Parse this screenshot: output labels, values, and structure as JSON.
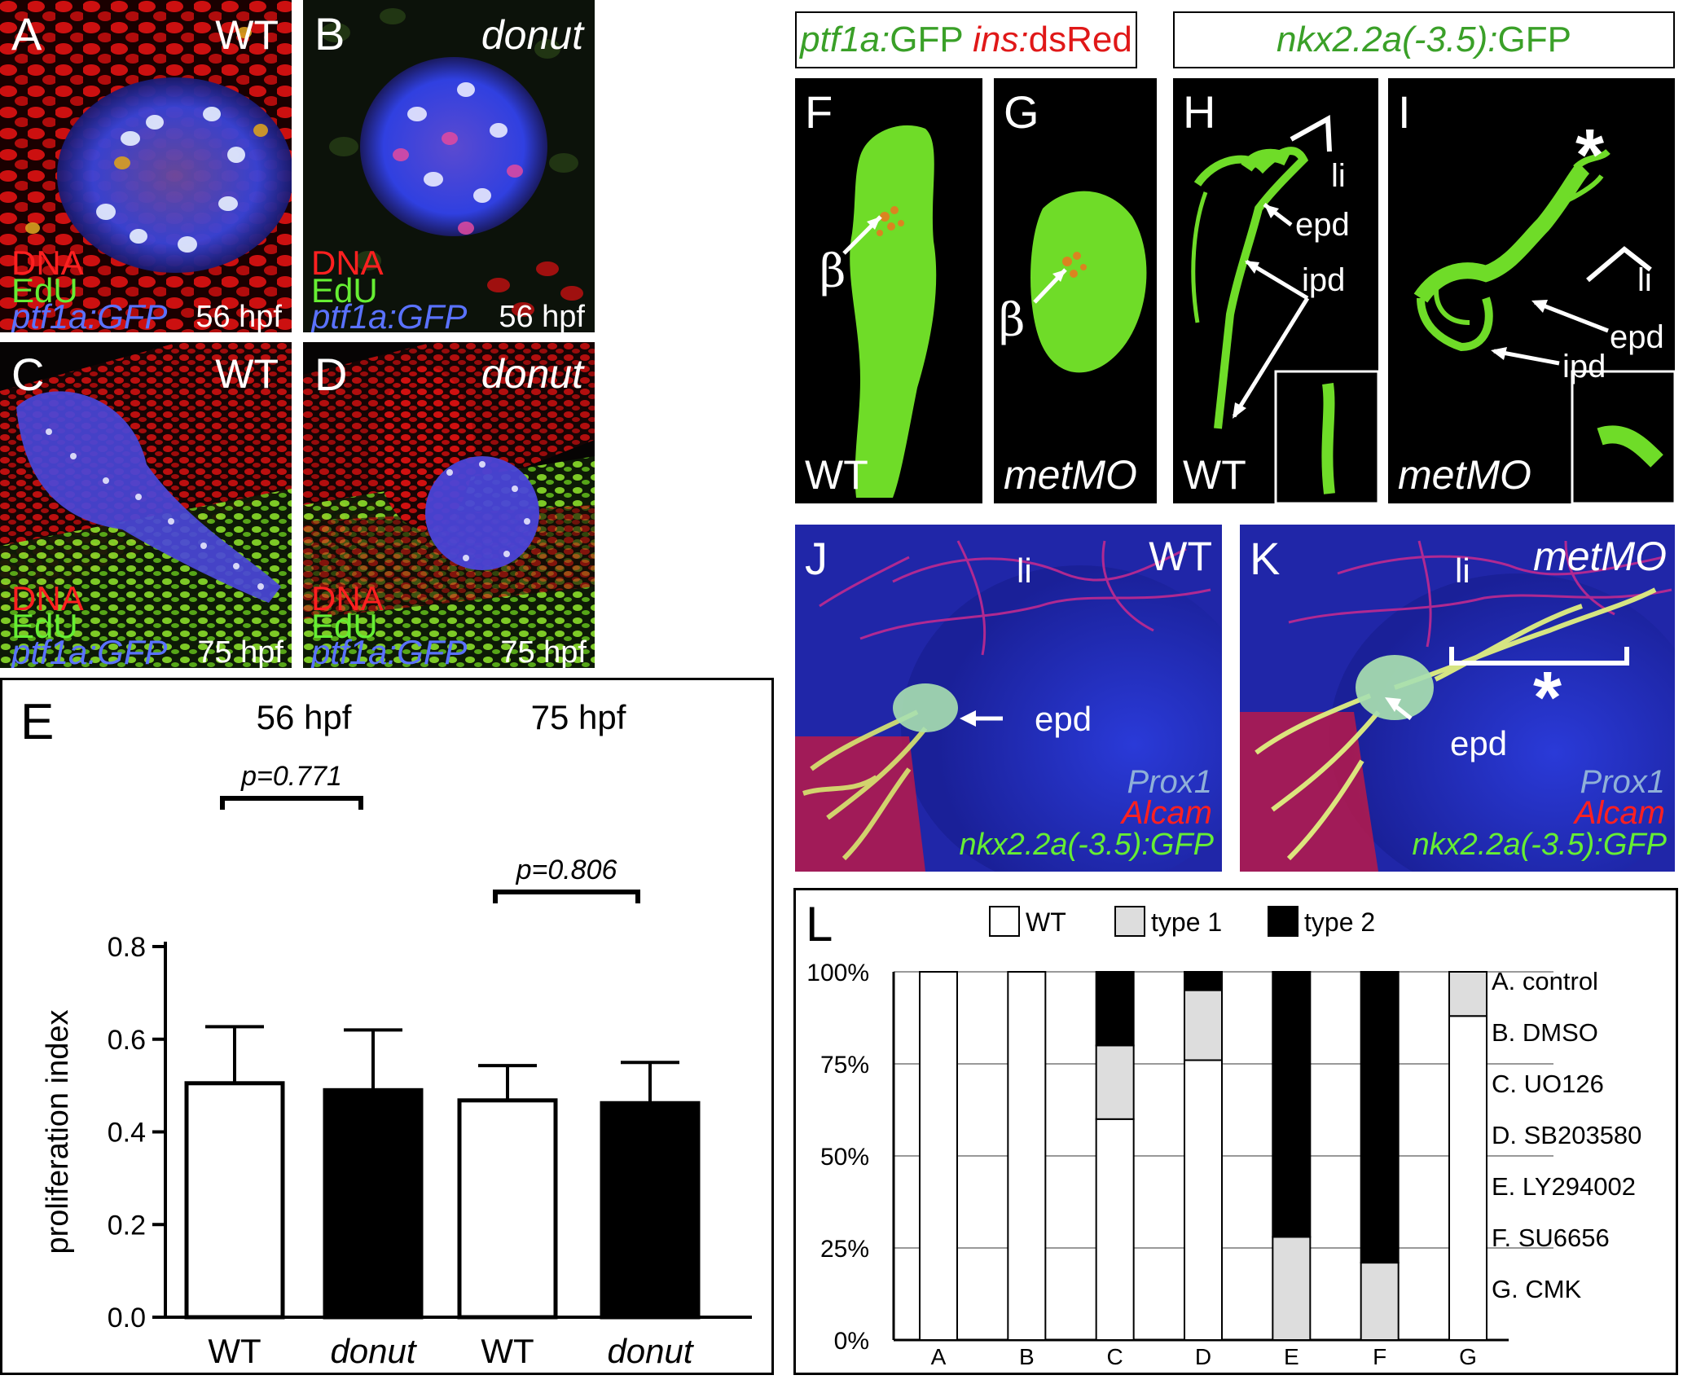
{
  "panels": {
    "A": {
      "letter": "A",
      "genotype": "WT",
      "stains": [
        "DNA",
        "EdU",
        "ptf1a:GFP"
      ],
      "time": "56 hpf"
    },
    "B": {
      "letter": "B",
      "genotype": "donut",
      "stains": [
        "DNA",
        "EdU",
        "ptf1a:GFP"
      ],
      "time": "56 hpf"
    },
    "C": {
      "letter": "C",
      "genotype": "WT",
      "stains": [
        "DNA",
        "EdU",
        "ptf1a:GFP"
      ],
      "time": "75 hpf"
    },
    "D": {
      "letter": "D",
      "genotype": "donut",
      "stains": [
        "DNA",
        "EdU",
        "ptf1a:GFP"
      ],
      "time": "75 hpf"
    },
    "F": {
      "letter": "F",
      "genotype": "WT",
      "beta": "β"
    },
    "G": {
      "letter": "G",
      "genotype": "metMO",
      "beta": "β"
    },
    "H": {
      "letter": "H",
      "genotype": "WT",
      "li": "li",
      "epd": "epd",
      "ipd": "ipd"
    },
    "I": {
      "letter": "I",
      "genotype": "metMO",
      "li": "li",
      "epd": "epd",
      "ipd": "ipd",
      "asterisk": "*"
    },
    "J": {
      "letter": "J",
      "genotype": "WT",
      "li": "li",
      "epd": "epd",
      "stains": [
        "Prox1",
        "Alcam",
        "nkx2.2a(-3.5):GFP"
      ]
    },
    "K": {
      "letter": "K",
      "genotype": "metMO",
      "li": "li",
      "epd": "epd",
      "asterisk": "*",
      "stains": [
        "Prox1",
        "Alcam",
        "nkx2.2a(-3.5):GFP"
      ]
    }
  },
  "headers": {
    "fg": {
      "green": "ptf1a:",
      "green2": "GFP ",
      "red": "ins:",
      "red2": "dsRed"
    },
    "hi": {
      "green": "nkx2.2a(-3.5):",
      "green2": "GFP"
    }
  },
  "chart_data": [
    {
      "panel": "E",
      "type": "bar",
      "ylabel": "proliferation index",
      "ylim": [
        0,
        0.8
      ],
      "yticks": [
        "0.0",
        "0.2",
        "0.4",
        "0.6",
        "0.8"
      ],
      "groups": [
        "56 hpf",
        "75 hpf"
      ],
      "categories": [
        "WT",
        "donut",
        "WT",
        "donut"
      ],
      "values": [
        0.505,
        0.49,
        0.468,
        0.462
      ],
      "errors": [
        0.122,
        0.13,
        0.075,
        0.088
      ],
      "fills": [
        "#ffffff",
        "#000000",
        "#ffffff",
        "#000000"
      ],
      "pvalues": [
        "p=0.771",
        "p=0.806"
      ]
    },
    {
      "panel": "L",
      "type": "bar",
      "stacked": true,
      "categories": [
        "A",
        "B",
        "C",
        "D",
        "E",
        "F",
        "G"
      ],
      "series": [
        {
          "name": "WT",
          "color": "#ffffff",
          "values": [
            100,
            100,
            60,
            76,
            0,
            0,
            88
          ]
        },
        {
          "name": "type 1",
          "color": "#dddddd",
          "values": [
            0,
            0,
            20,
            19,
            28,
            21,
            12
          ]
        },
        {
          "name": "type 2",
          "color": "#000000",
          "values": [
            0,
            0,
            20,
            5,
            72,
            79,
            0
          ]
        }
      ],
      "yticks": [
        "0%",
        "25%",
        "50%",
        "75%",
        "100%"
      ],
      "ylim": [
        0,
        100
      ],
      "treatments": [
        "A. control",
        "B. DMSO",
        "C. UO126",
        "D. SB203580",
        "E. LY294002",
        "F. SU6656",
        "G. CMK"
      ],
      "grid": true,
      "legend": "top"
    }
  ]
}
